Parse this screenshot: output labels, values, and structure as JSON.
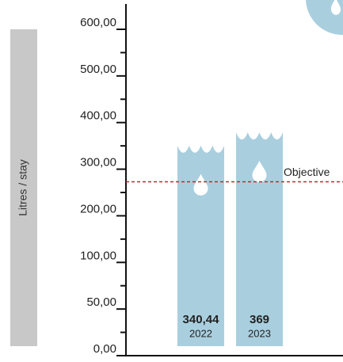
{
  "chart_data": {
    "type": "bar",
    "y_label": "Litres / stay",
    "categories": [
      "2022",
      "2023"
    ],
    "values": [
      340.44,
      369
    ],
    "value_labels": [
      "340,44",
      "369"
    ],
    "color": "#a9cfdf",
    "ylim": [
      0,
      600
    ],
    "yticks": [
      {
        "value": 0,
        "label": "0,00"
      },
      {
        "value": 50,
        "label": "50,00"
      },
      {
        "value": 100,
        "label": "100,00"
      },
      {
        "value": 200,
        "label": "200,00"
      },
      {
        "value": 300,
        "label": "300,00"
      },
      {
        "value": 400,
        "label": "400,00"
      },
      {
        "value": 500,
        "label": "500,00"
      },
      {
        "value": 600,
        "label": "600,00"
      }
    ],
    "minor_yticks": [
      25,
      75,
      150,
      250,
      350,
      450,
      550
    ],
    "objective": {
      "label": "Objective",
      "value": 273,
      "color": "#d0202f"
    }
  }
}
